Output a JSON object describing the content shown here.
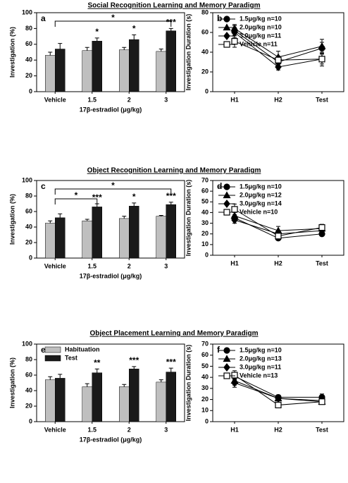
{
  "headings": [
    "Social Recognition Learning and Memory Paradigm",
    "Object Recognition Learning and Memory Paradigm",
    "Object Placement Learning and Memory Paradigm"
  ],
  "chart_data": [
    {
      "type": "bar",
      "label": "a",
      "xlabel": "17β-estradiol (μg/kg)",
      "ylabel": "Investigation (%)",
      "categories": [
        "Vehicle",
        "1.5",
        "2",
        "3"
      ],
      "ylim": [
        0,
        100
      ],
      "yticks": [
        0,
        20,
        40,
        60,
        80,
        100
      ],
      "series": [
        {
          "color": "#bfbfbf",
          "values": [
            46,
            52,
            53,
            51
          ],
          "errors": [
            4,
            4,
            3,
            3
          ]
        },
        {
          "color": "#1a1a1a",
          "values": [
            54,
            64,
            66,
            77
          ],
          "errors": [
            7,
            4,
            6,
            3
          ]
        }
      ],
      "significance": [
        null,
        "*",
        "*",
        "***"
      ],
      "brackets": [
        {
          "from": "Vehicle",
          "to": "3",
          "label": "*"
        }
      ]
    },
    {
      "type": "line",
      "label": "b",
      "ylabel": "Investigation Duration (s)",
      "categories": [
        "H1",
        "H2",
        "Test"
      ],
      "ylim": [
        0,
        80
      ],
      "yticks": [
        0,
        20,
        40,
        60,
        80
      ],
      "series": [
        {
          "name": "1.5μg/kg n=10",
          "marker": "circle",
          "color": "#000000",
          "values": [
            62,
            30,
            44
          ],
          "errors": [
            5,
            5,
            6
          ]
        },
        {
          "name": "2.0μg/kg n=10",
          "marker": "triangle",
          "color": "#000000",
          "values": [
            64,
            35,
            46
          ],
          "errors": [
            4,
            6,
            7
          ]
        },
        {
          "name": "3.0μg/kg n=11",
          "marker": "diamond",
          "color": "#000000",
          "values": [
            60,
            25,
            33
          ],
          "errors": [
            5,
            3,
            5
          ]
        },
        {
          "name": "Vehicle n=11",
          "marker": "square-open",
          "color": "#000000",
          "values": [
            51,
            32,
            33
          ],
          "errors": [
            6,
            4,
            7
          ]
        }
      ]
    },
    {
      "type": "bar",
      "label": "c",
      "xlabel": "17β-estradiol (μg/kg)",
      "ylabel": "Investigation (%)",
      "categories": [
        "Vehicle",
        "1.5",
        "2",
        "3"
      ],
      "ylim": [
        0,
        100
      ],
      "yticks": [
        0,
        20,
        40,
        60,
        80,
        100
      ],
      "series": [
        {
          "color": "#bfbfbf",
          "values": [
            45,
            48,
            51,
            54
          ],
          "errors": [
            3,
            2,
            3,
            1
          ]
        },
        {
          "color": "#1a1a1a",
          "values": [
            52,
            66,
            67,
            69
          ],
          "errors": [
            5,
            4,
            4,
            3
          ]
        }
      ],
      "significance": [
        null,
        "***",
        "*",
        "***"
      ],
      "brackets": [
        {
          "from": "Vehicle",
          "to": "3",
          "label": "*"
        },
        {
          "from": "Vehicle",
          "to": "1.5",
          "label": "*"
        }
      ]
    },
    {
      "type": "line",
      "label": "d",
      "ylabel": "Investigation Duration (s)",
      "categories": [
        "H1",
        "H2",
        "Test"
      ],
      "ylim": [
        0,
        70
      ],
      "yticks": [
        0,
        10,
        20,
        30,
        40,
        50,
        60,
        70
      ],
      "series": [
        {
          "name": "1.5μg/kg n=10",
          "marker": "circle",
          "color": "#000000",
          "values": [
            35,
            16,
            20
          ],
          "errors": [
            3,
            2,
            2
          ]
        },
        {
          "name": "2.0μg/kg n=12",
          "marker": "triangle",
          "color": "#000000",
          "values": [
            37,
            23,
            25
          ],
          "errors": [
            3,
            4,
            3
          ]
        },
        {
          "name": "3.0μg/kg n=14",
          "marker": "diamond",
          "color": "#000000",
          "values": [
            33,
            20,
            23
          ],
          "errors": [
            3,
            3,
            3
          ]
        },
        {
          "name": "Vehicle n=10",
          "marker": "square-open",
          "color": "#000000",
          "values": [
            43,
            18,
            26
          ],
          "errors": [
            5,
            3,
            3
          ]
        }
      ]
    },
    {
      "type": "bar",
      "label": "e",
      "xlabel": "17β-estradiol (μg/kg)",
      "ylabel": "Investigation (%)",
      "categories": [
        "Vehicle",
        "1.5",
        "2",
        "3"
      ],
      "ylim": [
        0,
        100
      ],
      "yticks": [
        0,
        20,
        40,
        60,
        80,
        100
      ],
      "legend": "upper left",
      "series": [
        {
          "name": "Habituation",
          "color": "#bfbfbf",
          "values": [
            54,
            45,
            45,
            51
          ],
          "errors": [
            4,
            4,
            3,
            3
          ]
        },
        {
          "name": "Test",
          "color": "#1a1a1a",
          "values": [
            56,
            63,
            68,
            64
          ],
          "errors": [
            5,
            5,
            3,
            5
          ]
        }
      ],
      "significance": [
        null,
        "**",
        "***",
        "***"
      ]
    },
    {
      "type": "line",
      "label": "f",
      "ylabel": "Investigation Duration (s)",
      "categories": [
        "H1",
        "H2",
        "Test"
      ],
      "ylim": [
        0,
        70
      ],
      "yticks": [
        0,
        10,
        20,
        30,
        40,
        50,
        60,
        70
      ],
      "series": [
        {
          "name": "1.5μg/kg n=10",
          "marker": "circle",
          "color": "#000000",
          "values": [
            41,
            22,
            22
          ],
          "errors": [
            3,
            2,
            3
          ]
        },
        {
          "name": "2.0μg/kg n=13",
          "marker": "triangle",
          "color": "#000000",
          "values": [
            37,
            21,
            18
          ],
          "errors": [
            4,
            2,
            2
          ]
        },
        {
          "name": "3.0μg/kg n=11",
          "marker": "diamond",
          "color": "#000000",
          "values": [
            35,
            21,
            19
          ],
          "errors": [
            4,
            2,
            2
          ]
        },
        {
          "name": "Vehicle n=13",
          "marker": "square-open",
          "color": "#000000",
          "values": [
            42,
            15,
            18
          ],
          "errors": [
            4,
            2,
            2
          ]
        }
      ]
    }
  ]
}
